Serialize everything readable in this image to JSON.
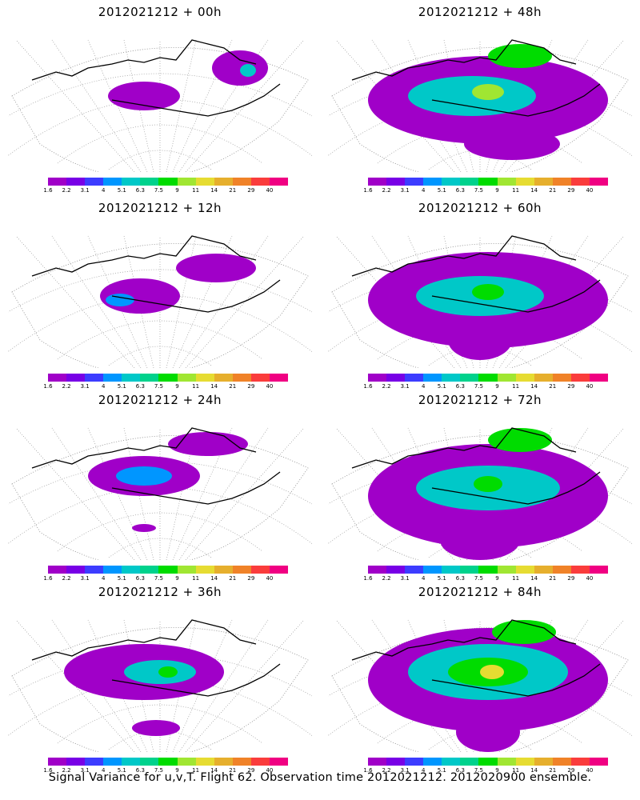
{
  "panels": [
    {
      "title": "2012021212 + 00h"
    },
    {
      "title": "2012021212 + 48h"
    },
    {
      "title": "2012021212 + 12h"
    },
    {
      "title": "2012021212 + 60h"
    },
    {
      "title": "2012021212 + 24h"
    },
    {
      "title": "2012021212 + 72h"
    },
    {
      "title": "2012021212 + 36h"
    },
    {
      "title": "2012021212 + 84h"
    }
  ],
  "colorbar": {
    "labels": [
      "1.6",
      "2.2",
      "3.1",
      "4",
      "5.1",
      "6.3",
      "7.5",
      "9",
      "11",
      "14",
      "21",
      "29",
      "40"
    ],
    "colors": [
      "#a000c8",
      "#7800e6",
      "#3c3cff",
      "#0096ff",
      "#00c8c8",
      "#00d28c",
      "#00dc00",
      "#a0e632",
      "#e6dc32",
      "#e6af2d",
      "#f08228",
      "#fa3c3c",
      "#f00082"
    ]
  },
  "caption": "Signal Variance for u,v,T. Flight 62. Observation time 2012021212. 2012020900 ensemble."
}
